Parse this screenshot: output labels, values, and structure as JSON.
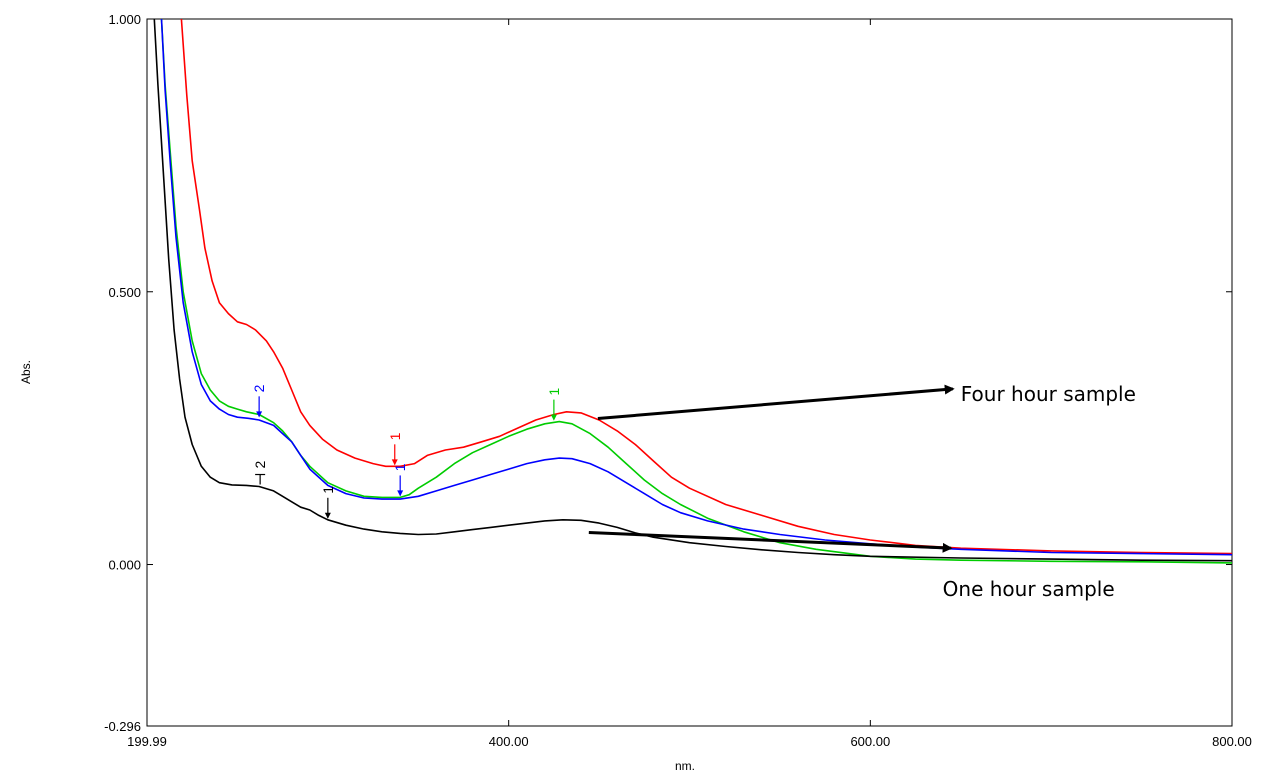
{
  "chart_data": {
    "type": "line",
    "title": "",
    "xlabel": "nm.",
    "ylabel": "Abs.",
    "xlim": [
      199.99,
      800.0
    ],
    "ylim": [
      -0.296,
      1.0
    ],
    "x_ticks": [
      {
        "value": 199.99,
        "label": "199.99"
      },
      {
        "value": 400.0,
        "label": "400.00"
      },
      {
        "value": 600.0,
        "label": "600.00"
      },
      {
        "value": 800.0,
        "label": "800.00"
      }
    ],
    "y_ticks": [
      {
        "value": 1.0,
        "label": "1.000"
      },
      {
        "value": 0.5,
        "label": "0.500"
      },
      {
        "value": 0.0,
        "label": "0.000"
      },
      {
        "value": -0.296,
        "label": "-0.296"
      }
    ],
    "grid": false,
    "legend": "none",
    "series": [
      {
        "color": "#ff0000",
        "points": [
          [
            219,
            1.0
          ],
          [
            222,
            0.86
          ],
          [
            225,
            0.74
          ],
          [
            229,
            0.65
          ],
          [
            232,
            0.58
          ],
          [
            236,
            0.52
          ],
          [
            240,
            0.48
          ],
          [
            245,
            0.46
          ],
          [
            250,
            0.445
          ],
          [
            255,
            0.44
          ],
          [
            260,
            0.43
          ],
          [
            266,
            0.41
          ],
          [
            270,
            0.39
          ],
          [
            275,
            0.36
          ],
          [
            280,
            0.32
          ],
          [
            285,
            0.28
          ],
          [
            290,
            0.255
          ],
          [
            297,
            0.23
          ],
          [
            305,
            0.21
          ],
          [
            315,
            0.195
          ],
          [
            325,
            0.185
          ],
          [
            332,
            0.18
          ],
          [
            340,
            0.18
          ],
          [
            348,
            0.185
          ],
          [
            355,
            0.2
          ],
          [
            365,
            0.21
          ],
          [
            375,
            0.215
          ],
          [
            385,
            0.225
          ],
          [
            395,
            0.235
          ],
          [
            405,
            0.25
          ],
          [
            415,
            0.265
          ],
          [
            425,
            0.275
          ],
          [
            432,
            0.28
          ],
          [
            440,
            0.278
          ],
          [
            450,
            0.265
          ],
          [
            460,
            0.245
          ],
          [
            470,
            0.22
          ],
          [
            480,
            0.19
          ],
          [
            490,
            0.16
          ],
          [
            500,
            0.14
          ],
          [
            520,
            0.11
          ],
          [
            540,
            0.09
          ],
          [
            560,
            0.07
          ],
          [
            580,
            0.055
          ],
          [
            600,
            0.045
          ],
          [
            625,
            0.035
          ],
          [
            650,
            0.03
          ],
          [
            700,
            0.025
          ],
          [
            750,
            0.022
          ],
          [
            800,
            0.02
          ]
        ]
      },
      {
        "color": "#00cc00",
        "points": [
          [
            208,
            1.0
          ],
          [
            210,
            0.88
          ],
          [
            213,
            0.75
          ],
          [
            216,
            0.62
          ],
          [
            220,
            0.5
          ],
          [
            225,
            0.41
          ],
          [
            230,
            0.35
          ],
          [
            235,
            0.32
          ],
          [
            240,
            0.3
          ],
          [
            245,
            0.29
          ],
          [
            250,
            0.285
          ],
          [
            255,
            0.28
          ],
          [
            262,
            0.275
          ],
          [
            270,
            0.26
          ],
          [
            275,
            0.245
          ],
          [
            280,
            0.225
          ],
          [
            285,
            0.2
          ],
          [
            290,
            0.18
          ],
          [
            300,
            0.15
          ],
          [
            310,
            0.135
          ],
          [
            320,
            0.125
          ],
          [
            330,
            0.123
          ],
          [
            340,
            0.123
          ],
          [
            345,
            0.128
          ],
          [
            350,
            0.14
          ],
          [
            360,
            0.16
          ],
          [
            370,
            0.185
          ],
          [
            380,
            0.205
          ],
          [
            390,
            0.22
          ],
          [
            400,
            0.235
          ],
          [
            410,
            0.248
          ],
          [
            420,
            0.258
          ],
          [
            428,
            0.262
          ],
          [
            435,
            0.258
          ],
          [
            445,
            0.24
          ],
          [
            455,
            0.215
          ],
          [
            465,
            0.185
          ],
          [
            475,
            0.155
          ],
          [
            485,
            0.13
          ],
          [
            495,
            0.11
          ],
          [
            510,
            0.085
          ],
          [
            530,
            0.06
          ],
          [
            550,
            0.04
          ],
          [
            570,
            0.028
          ],
          [
            600,
            0.015
          ],
          [
            625,
            0.01
          ],
          [
            650,
            0.008
          ],
          [
            700,
            0.006
          ],
          [
            750,
            0.005
          ],
          [
            800,
            0.003
          ]
        ]
      },
      {
        "color": "#0000ff",
        "points": [
          [
            208,
            1.0
          ],
          [
            210,
            0.87
          ],
          [
            213,
            0.73
          ],
          [
            216,
            0.6
          ],
          [
            220,
            0.48
          ],
          [
            225,
            0.39
          ],
          [
            230,
            0.33
          ],
          [
            235,
            0.3
          ],
          [
            240,
            0.285
          ],
          [
            245,
            0.275
          ],
          [
            250,
            0.27
          ],
          [
            256,
            0.268
          ],
          [
            262,
            0.265
          ],
          [
            270,
            0.255
          ],
          [
            275,
            0.24
          ],
          [
            280,
            0.225
          ],
          [
            285,
            0.2
          ],
          [
            290,
            0.175
          ],
          [
            300,
            0.145
          ],
          [
            310,
            0.13
          ],
          [
            320,
            0.122
          ],
          [
            330,
            0.12
          ],
          [
            340,
            0.12
          ],
          [
            350,
            0.125
          ],
          [
            360,
            0.135
          ],
          [
            370,
            0.145
          ],
          [
            380,
            0.155
          ],
          [
            390,
            0.165
          ],
          [
            400,
            0.175
          ],
          [
            410,
            0.185
          ],
          [
            420,
            0.192
          ],
          [
            428,
            0.195
          ],
          [
            435,
            0.194
          ],
          [
            445,
            0.185
          ],
          [
            455,
            0.17
          ],
          [
            465,
            0.15
          ],
          [
            475,
            0.13
          ],
          [
            485,
            0.11
          ],
          [
            495,
            0.095
          ],
          [
            510,
            0.08
          ],
          [
            530,
            0.065
          ],
          [
            550,
            0.055
          ],
          [
            575,
            0.045
          ],
          [
            600,
            0.038
          ],
          [
            625,
            0.032
          ],
          [
            650,
            0.028
          ],
          [
            700,
            0.022
          ],
          [
            750,
            0.02
          ],
          [
            800,
            0.018
          ]
        ]
      },
      {
        "color": "#000000",
        "points": [
          [
            204,
            1.0
          ],
          [
            206,
            0.88
          ],
          [
            209,
            0.72
          ],
          [
            212,
            0.56
          ],
          [
            215,
            0.43
          ],
          [
            218,
            0.34
          ],
          [
            221,
            0.27
          ],
          [
            225,
            0.22
          ],
          [
            230,
            0.18
          ],
          [
            235,
            0.16
          ],
          [
            240,
            0.15
          ],
          [
            247,
            0.146
          ],
          [
            255,
            0.145
          ],
          [
            262,
            0.143
          ],
          [
            270,
            0.135
          ],
          [
            275,
            0.125
          ],
          [
            280,
            0.115
          ],
          [
            285,
            0.105
          ],
          [
            290,
            0.1
          ],
          [
            295,
            0.09
          ],
          [
            300,
            0.082
          ],
          [
            310,
            0.072
          ],
          [
            320,
            0.065
          ],
          [
            330,
            0.06
          ],
          [
            340,
            0.057
          ],
          [
            350,
            0.055
          ],
          [
            360,
            0.056
          ],
          [
            370,
            0.06
          ],
          [
            380,
            0.064
          ],
          [
            390,
            0.068
          ],
          [
            400,
            0.072
          ],
          [
            410,
            0.076
          ],
          [
            420,
            0.08
          ],
          [
            430,
            0.082
          ],
          [
            440,
            0.081
          ],
          [
            450,
            0.076
          ],
          [
            460,
            0.068
          ],
          [
            470,
            0.058
          ],
          [
            480,
            0.05
          ],
          [
            500,
            0.04
          ],
          [
            520,
            0.033
          ],
          [
            540,
            0.027
          ],
          [
            560,
            0.022
          ],
          [
            580,
            0.018
          ],
          [
            600,
            0.015
          ],
          [
            650,
            0.012
          ],
          [
            700,
            0.01
          ],
          [
            750,
            0.008
          ],
          [
            800,
            0.007
          ]
        ]
      }
    ],
    "peak_markers": [
      {
        "label": "2",
        "x": 262,
        "y": 0.268,
        "color": "#0000ff",
        "dir": "down"
      },
      {
        "label": "1",
        "x": 337,
        "y": 0.18,
        "color": "#ff0000",
        "dir": "down"
      },
      {
        "label": "1",
        "x": 340,
        "y": 0.123,
        "color": "#0000ff",
        "dir": "down"
      },
      {
        "label": "1",
        "x": 425,
        "y": 0.262,
        "color": "#00cc00",
        "dir": "down"
      },
      {
        "label": "2",
        "x": 262,
        "y": 0.143,
        "color": "#000000",
        "dir": "left"
      },
      {
        "label": "1",
        "x": 300,
        "y": 0.082,
        "color": "#000000",
        "dir": "down"
      }
    ],
    "annotations": [
      {
        "text": "Four hour sample",
        "x": 650,
        "y": 0.3,
        "arrow_to": [
          446,
          0.275
        ],
        "color": "#000000"
      },
      {
        "text": "One hour sample",
        "x": 640,
        "y": -0.058,
        "arrow_to": [
          441,
          0.066
        ],
        "color": "#000000"
      }
    ]
  }
}
